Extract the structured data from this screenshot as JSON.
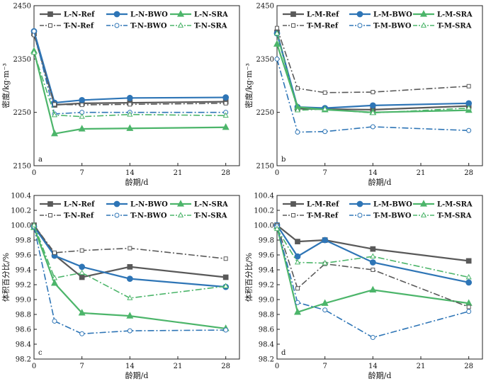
{
  "series_styles": {
    "Ref": {
      "color": "#595959",
      "marker": "square"
    },
    "BWO": {
      "color": "#2e75b6",
      "marker": "circle"
    },
    "SRA": {
      "color": "#4cb56a",
      "marker": "triangle"
    }
  },
  "chart_data": [
    {
      "type": "line",
      "panel_label": "a",
      "xlabel": "龄期/d",
      "ylabel": "密度/kg·m⁻³",
      "xlim": [
        0,
        30
      ],
      "ylim": [
        2150,
        2450
      ],
      "xticks": [
        0,
        7,
        14,
        21,
        28
      ],
      "yticks": [
        2150,
        2250,
        2350,
        2450
      ],
      "x": [
        0,
        3,
        7,
        14,
        28
      ],
      "legend": "top",
      "series": [
        {
          "name": "L-N-Ref",
          "group": "Ref",
          "dashed": false,
          "values": [
            2398,
            2264,
            2267,
            2268,
            2270
          ]
        },
        {
          "name": "L-N-BWO",
          "group": "BWO",
          "dashed": false,
          "values": [
            2402,
            2268,
            2273,
            2277,
            2278
          ]
        },
        {
          "name": "L-N-SRA",
          "group": "SRA",
          "dashed": false,
          "values": [
            2365,
            2210,
            2219,
            2220,
            2222
          ]
        },
        {
          "name": "T-N-Ref",
          "group": "Ref",
          "dashed": true,
          "values": [
            2395,
            2265,
            2264,
            2265,
            2267
          ]
        },
        {
          "name": "T-N-BWO",
          "group": "BWO",
          "dashed": true,
          "values": [
            2402,
            2247,
            2250,
            2250,
            2250
          ]
        },
        {
          "name": "T-N-SRA",
          "group": "SRA",
          "dashed": true,
          "values": [
            2362,
            2245,
            2242,
            2246,
            2244
          ]
        }
      ]
    },
    {
      "type": "line",
      "panel_label": "b",
      "xlabel": "龄期/d",
      "ylabel": "密度/kg·m⁻³",
      "xlim": [
        0,
        30
      ],
      "ylim": [
        2150,
        2450
      ],
      "xticks": [
        0,
        7,
        14,
        21,
        28
      ],
      "yticks": [
        2150,
        2250,
        2350,
        2450
      ],
      "x": [
        0,
        3,
        7,
        14,
        28
      ],
      "legend": "top",
      "series": [
        {
          "name": "L-M-Ref",
          "group": "Ref",
          "dashed": false,
          "values": [
            2400,
            2257,
            2256,
            2255,
            2262
          ]
        },
        {
          "name": "L-M-BWO",
          "group": "BWO",
          "dashed": false,
          "values": [
            2398,
            2260,
            2258,
            2263,
            2267
          ]
        },
        {
          "name": "L-M-SRA",
          "group": "SRA",
          "dashed": false,
          "values": [
            2378,
            2260,
            2255,
            2250,
            2254
          ]
        },
        {
          "name": "T-M-Ref",
          "group": "Ref",
          "dashed": true,
          "values": [
            2408,
            2295,
            2287,
            2288,
            2299
          ]
        },
        {
          "name": "T-M-BWO",
          "group": "BWO",
          "dashed": true,
          "values": [
            2350,
            2213,
            2214,
            2223,
            2216
          ]
        },
        {
          "name": "T-M-SRA",
          "group": "SRA",
          "dashed": true,
          "values": [
            2398,
            2254,
            2256,
            2249,
            2258
          ]
        }
      ]
    },
    {
      "type": "line",
      "panel_label": "c",
      "xlabel": "龄期/d",
      "ylabel": "体积百分比/%",
      "xlim": [
        0,
        30
      ],
      "ylim": [
        98.2,
        100.4
      ],
      "xticks": [
        0,
        7,
        14,
        21,
        28
      ],
      "yticks": [
        98.2,
        98.4,
        98.6,
        98.8,
        99.0,
        99.2,
        99.4,
        99.6,
        99.8,
        100.0,
        100.2,
        100.4
      ],
      "x": [
        0,
        3,
        7,
        14,
        28
      ],
      "legend": "top",
      "series": [
        {
          "name": "L-N-Ref",
          "group": "Ref",
          "dashed": false,
          "values": [
            100.0,
            99.6,
            99.3,
            99.44,
            99.3
          ]
        },
        {
          "name": "L-N-BWO",
          "group": "BWO",
          "dashed": false,
          "values": [
            99.98,
            99.59,
            99.44,
            99.28,
            99.17
          ]
        },
        {
          "name": "L-N-SRA",
          "group": "SRA",
          "dashed": false,
          "values": [
            99.97,
            99.22,
            98.82,
            98.78,
            98.61
          ]
        },
        {
          "name": "T-N-Ref",
          "group": "Ref",
          "dashed": true,
          "values": [
            100.0,
            99.63,
            99.66,
            99.69,
            99.55
          ]
        },
        {
          "name": "T-N-BWO",
          "group": "BWO",
          "dashed": true,
          "values": [
            99.98,
            98.71,
            98.54,
            98.58,
            98.59
          ]
        },
        {
          "name": "T-N-SRA",
          "group": "SRA",
          "dashed": true,
          "values": [
            100.0,
            99.29,
            99.36,
            99.02,
            99.18
          ]
        }
      ]
    },
    {
      "type": "line",
      "panel_label": "d",
      "xlabel": "龄期/d",
      "ylabel": "体积百分比/%",
      "xlim": [
        0,
        30
      ],
      "ylim": [
        98.2,
        100.4
      ],
      "xticks": [
        0,
        7,
        14,
        21,
        28
      ],
      "yticks": [
        98.2,
        98.4,
        98.6,
        98.8,
        99.0,
        99.2,
        99.4,
        99.6,
        99.8,
        100.0,
        100.2,
        100.4
      ],
      "x": [
        0,
        3,
        7,
        14,
        28
      ],
      "legend": "top",
      "series": [
        {
          "name": "L-M-Ref",
          "group": "Ref",
          "dashed": false,
          "values": [
            100.0,
            99.78,
            99.8,
            99.68,
            99.52
          ]
        },
        {
          "name": "L-M-BWO",
          "group": "BWO",
          "dashed": false,
          "values": [
            100.0,
            99.58,
            99.8,
            99.5,
            99.23
          ]
        },
        {
          "name": "L-M-SRA",
          "group": "SRA",
          "dashed": false,
          "values": [
            99.98,
            98.83,
            98.95,
            99.13,
            98.95
          ]
        },
        {
          "name": "T-M-Ref",
          "group": "Ref",
          "dashed": true,
          "values": [
            100.0,
            99.15,
            99.48,
            99.4,
            98.9
          ]
        },
        {
          "name": "T-M-BWO",
          "group": "BWO",
          "dashed": true,
          "values": [
            99.98,
            98.96,
            98.86,
            98.49,
            98.84
          ]
        },
        {
          "name": "T-M-SRA",
          "group": "SRA",
          "dashed": true,
          "values": [
            99.95,
            99.5,
            99.49,
            99.58,
            99.3
          ]
        }
      ]
    }
  ]
}
